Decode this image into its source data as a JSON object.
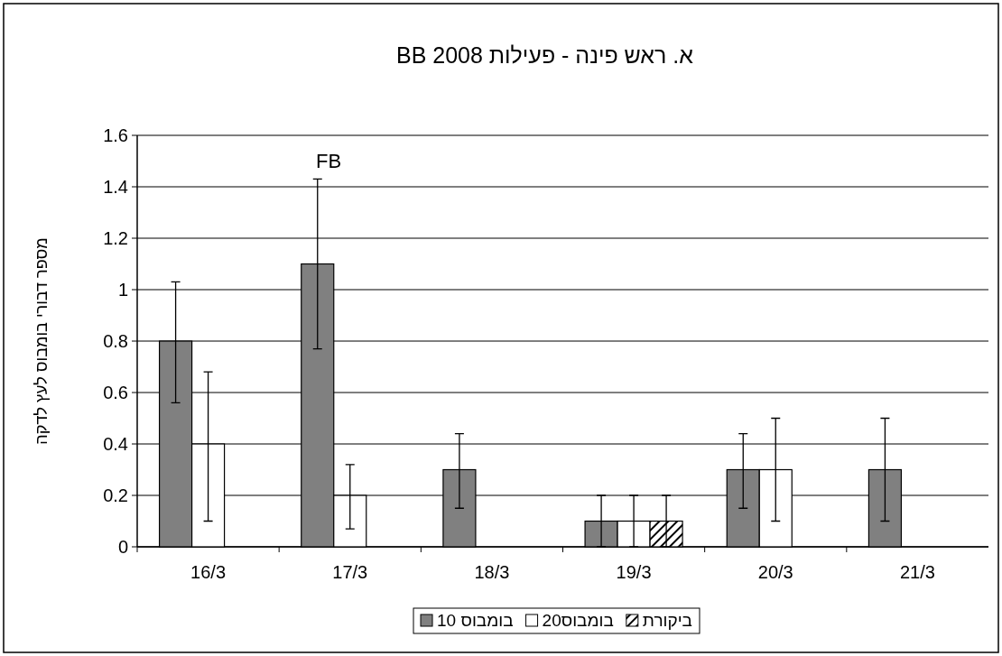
{
  "chart_data": {
    "type": "bar",
    "title": "א. ראש פינה - פעילות  BB 2008",
    "ylabel": "מספר דבורי בומבוס לעץ לדקה",
    "categories": [
      "16/3",
      "17/3",
      "18/3",
      "19/3",
      "20/3",
      "21/3"
    ],
    "series": [
      {
        "name": "בומבוס 10",
        "color": "#808080",
        "values": [
          0.8,
          1.1,
          0.3,
          0.1,
          0.3,
          0.3
        ],
        "errors": [
          [
            0.56,
            1.03
          ],
          [
            0.77,
            1.43
          ],
          [
            0.15,
            0.44
          ],
          [
            0,
            0.2
          ],
          [
            0.15,
            0.44
          ],
          [
            0.1,
            0.5
          ]
        ]
      },
      {
        "name": "בומבוס20",
        "color": "#ffffff",
        "values": [
          0.4,
          0.2,
          null,
          0.1,
          0.3,
          null
        ],
        "errors": [
          [
            0.1,
            0.68
          ],
          [
            0.07,
            0.32
          ],
          null,
          [
            0,
            0.2
          ],
          [
            0.1,
            0.5
          ],
          null
        ]
      },
      {
        "name": "ביקורת",
        "color": "#000000",
        "values": [
          null,
          null,
          null,
          0.1,
          null,
          null
        ],
        "errors": [
          null,
          null,
          null,
          [
            0,
            0.2
          ],
          null,
          null
        ]
      }
    ],
    "ylim": [
      0,
      1.6
    ],
    "yticks": [
      0,
      0.2,
      0.4,
      0.6,
      0.8,
      1,
      1.2,
      1.4,
      1.6
    ],
    "grid": "y",
    "legend": "bottom",
    "annotations": [
      "FB"
    ]
  }
}
